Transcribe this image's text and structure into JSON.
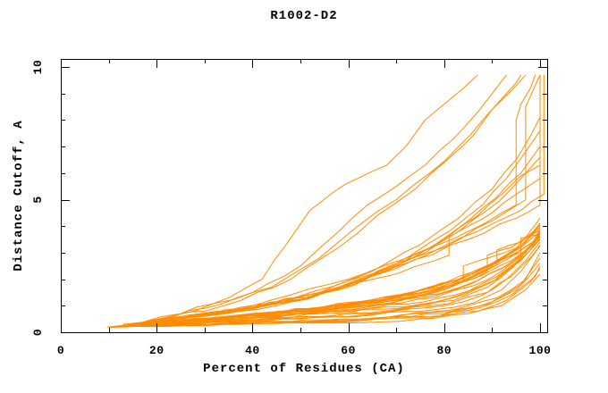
{
  "title": "R1002-D2",
  "chart_data": {
    "type": "line",
    "title": "R1002-D2",
    "xlabel": "Percent of Residues (CA)",
    "ylabel": "Distance Cutoff, A",
    "xlim": [
      0,
      101.5
    ],
    "ylim": [
      0,
      10.34
    ],
    "x_major_ticks": [
      0,
      20,
      40,
      60,
      80,
      100
    ],
    "x_minor_ticks": [
      10,
      30,
      50,
      70,
      90
    ],
    "y_major_ticks": [
      0,
      5,
      10
    ],
    "y_minor_ticks": [
      1,
      2,
      3,
      4,
      6,
      7,
      8,
      9
    ],
    "grid": false,
    "legend": "none",
    "line_color": "#ff8c00",
    "frame_color": "#000000",
    "curves": [
      [
        [
          9.7,
          0.2
        ],
        [
          20,
          0.3
        ],
        [
          35,
          0.4
        ],
        [
          50,
          0.5
        ],
        [
          65,
          0.65
        ],
        [
          78,
          0.85
        ],
        [
          86,
          1.1
        ],
        [
          92,
          1.6
        ],
        [
          96,
          2.3
        ],
        [
          99,
          3.0
        ],
        [
          100,
          3.3
        ]
      ],
      [
        [
          10.5,
          0.2
        ],
        [
          22,
          0.32
        ],
        [
          38,
          0.45
        ],
        [
          52,
          0.55
        ],
        [
          68,
          0.75
        ],
        [
          80,
          1.0
        ],
        [
          88,
          1.4
        ],
        [
          93,
          2.0
        ],
        [
          97,
          2.7
        ],
        [
          100,
          3.4
        ]
      ],
      [
        [
          11,
          0.22
        ],
        [
          25,
          0.35
        ],
        [
          42,
          0.5
        ],
        [
          58,
          0.65
        ],
        [
          72,
          0.9
        ],
        [
          82,
          1.2
        ],
        [
          89,
          1.7
        ],
        [
          94,
          2.4
        ],
        [
          98,
          3.1
        ],
        [
          100,
          3.5
        ]
      ],
      [
        [
          12,
          0.22
        ],
        [
          26,
          0.38
        ],
        [
          44,
          0.55
        ],
        [
          60,
          0.75
        ],
        [
          74,
          1.0
        ],
        [
          84,
          1.4
        ],
        [
          90,
          1.9
        ],
        [
          95,
          2.6
        ],
        [
          100,
          3.6
        ]
      ],
      [
        [
          12.5,
          0.25
        ],
        [
          28,
          0.4
        ],
        [
          46,
          0.6
        ],
        [
          62,
          0.85
        ],
        [
          76,
          1.15
        ],
        [
          85,
          1.55
        ],
        [
          91,
          2.1
        ],
        [
          96,
          2.8
        ],
        [
          100,
          3.7
        ]
      ],
      [
        [
          13,
          0.25
        ],
        [
          30,
          0.45
        ],
        [
          48,
          0.65
        ],
        [
          64,
          0.95
        ],
        [
          78,
          1.3
        ],
        [
          86,
          1.75
        ],
        [
          92,
          2.3
        ],
        [
          97,
          3.0
        ],
        [
          100,
          3.8
        ]
      ],
      [
        [
          14,
          0.25
        ],
        [
          32,
          0.5
        ],
        [
          50,
          0.7
        ],
        [
          66,
          1.05
        ],
        [
          79,
          1.45
        ],
        [
          87,
          1.95
        ],
        [
          93,
          2.5
        ],
        [
          98,
          3.2
        ],
        [
          100,
          3.9
        ]
      ],
      [
        [
          15,
          0.28
        ],
        [
          33,
          0.52
        ],
        [
          52,
          0.78
        ],
        [
          68,
          1.15
        ],
        [
          80,
          1.6
        ],
        [
          88,
          2.15
        ],
        [
          94,
          2.7
        ],
        [
          100,
          3.5
        ]
      ],
      [
        [
          15.5,
          0.28
        ],
        [
          34,
          0.55
        ],
        [
          54,
          0.85
        ],
        [
          70,
          1.3
        ],
        [
          82,
          1.8
        ],
        [
          89,
          2.4
        ],
        [
          95,
          3.0
        ],
        [
          100,
          3.6
        ]
      ],
      [
        [
          16,
          0.3
        ],
        [
          35,
          0.6
        ],
        [
          56,
          0.95
        ],
        [
          72,
          1.45
        ],
        [
          83,
          2.0
        ],
        [
          90,
          2.6
        ],
        [
          96,
          3.2
        ],
        [
          100,
          3.8
        ]
      ],
      [
        [
          10,
          0.2
        ],
        [
          24,
          0.33
        ],
        [
          40,
          0.47
        ],
        [
          56,
          0.6
        ],
        [
          70,
          0.82
        ],
        [
          81,
          1.08
        ],
        [
          89,
          1.5
        ],
        [
          94,
          2.1
        ],
        [
          98,
          2.8
        ],
        [
          100,
          3.25
        ]
      ],
      [
        [
          11.5,
          0.22
        ],
        [
          27,
          0.4
        ],
        [
          45,
          0.57
        ],
        [
          61,
          0.8
        ],
        [
          75,
          1.05
        ],
        [
          84,
          1.45
        ],
        [
          91,
          2.0
        ],
        [
          96,
          2.7
        ],
        [
          100,
          3.55
        ]
      ],
      [
        [
          13.5,
          0.26
        ],
        [
          31,
          0.48
        ],
        [
          49,
          0.68
        ],
        [
          65,
          1.0
        ],
        [
          78,
          1.38
        ],
        [
          86,
          1.85
        ],
        [
          92,
          2.4
        ],
        [
          97,
          3.1
        ],
        [
          100,
          3.65
        ]
      ],
      [
        [
          14.5,
          0.27
        ],
        [
          33,
          0.53
        ],
        [
          53,
          0.8
        ],
        [
          69,
          1.2
        ],
        [
          81,
          1.7
        ],
        [
          88,
          2.25
        ],
        [
          94,
          2.85
        ],
        [
          99,
          3.45
        ],
        [
          100,
          3.75
        ]
      ],
      [
        [
          16.5,
          0.3
        ],
        [
          36,
          0.62
        ],
        [
          57,
          1.0
        ],
        [
          73,
          1.5
        ],
        [
          84,
          2.05
        ],
        [
          91,
          2.65
        ],
        [
          96,
          3.25
        ],
        [
          100,
          3.95
        ]
      ],
      [
        [
          19,
          0.34
        ],
        [
          41,
          0.68
        ],
        [
          61,
          1.08
        ],
        [
          76,
          1.62
        ],
        [
          86,
          2.2
        ],
        [
          92,
          2.75
        ],
        [
          97,
          3.4
        ],
        [
          100,
          4.05
        ]
      ],
      [
        [
          10,
          0.18
        ],
        [
          30,
          0.25
        ],
        [
          55,
          0.35
        ],
        [
          75,
          0.5
        ],
        [
          85,
          0.7
        ],
        [
          92,
          1.0
        ],
        [
          97,
          1.6
        ],
        [
          100,
          2.2
        ]
      ],
      [
        [
          10.5,
          0.18
        ],
        [
          32,
          0.27
        ],
        [
          58,
          0.38
        ],
        [
          77,
          0.55
        ],
        [
          87,
          0.8
        ],
        [
          93,
          1.2
        ],
        [
          98,
          1.9
        ],
        [
          100,
          2.4
        ]
      ],
      [
        [
          11,
          0.2
        ],
        [
          34,
          0.3
        ],
        [
          60,
          0.42
        ],
        [
          79,
          0.62
        ],
        [
          88,
          0.95
        ],
        [
          94,
          1.4
        ],
        [
          99,
          2.1
        ],
        [
          100,
          2.5
        ]
      ],
      [
        [
          12,
          0.2
        ],
        [
          36,
          0.32
        ],
        [
          62,
          0.46
        ],
        [
          80,
          0.7
        ],
        [
          89,
          1.05
        ],
        [
          95,
          1.6
        ],
        [
          100,
          2.6
        ]
      ],
      [
        [
          13,
          0.22
        ],
        [
          38,
          0.35
        ],
        [
          64,
          0.5
        ],
        [
          81,
          0.78
        ],
        [
          90,
          1.15
        ],
        [
          96,
          1.8
        ],
        [
          100,
          2.8
        ]
      ],
      [
        [
          14,
          0.22
        ],
        [
          40,
          0.38
        ],
        [
          66,
          0.55
        ],
        [
          82,
          0.85
        ],
        [
          91,
          1.3
        ],
        [
          97,
          2.0
        ],
        [
          100,
          3.0
        ]
      ],
      [
        [
          16,
          0.3
        ],
        [
          36,
          0.55
        ],
        [
          58,
          0.9
        ],
        [
          74,
          1.35
        ],
        [
          84,
          1.9
        ],
        [
          89,
          2.3
        ],
        [
          89,
          2.9
        ],
        [
          94,
          3.2
        ],
        [
          100,
          3.85
        ]
      ],
      [
        [
          18,
          0.32
        ],
        [
          38,
          0.6
        ],
        [
          60,
          1.0
        ],
        [
          76,
          1.5
        ],
        [
          86,
          2.1
        ],
        [
          91,
          2.55
        ],
        [
          91,
          3.1
        ],
        [
          96,
          3.4
        ],
        [
          100,
          4.0
        ]
      ],
      [
        [
          20,
          0.35
        ],
        [
          42,
          0.65
        ],
        [
          62,
          1.05
        ],
        [
          78,
          1.6
        ],
        [
          84,
          1.95
        ],
        [
          84,
          2.5
        ],
        [
          90,
          2.85
        ],
        [
          96,
          3.25
        ],
        [
          100,
          4.1
        ]
      ],
      [
        [
          21,
          0.38
        ],
        [
          44,
          0.7
        ],
        [
          64,
          1.1
        ],
        [
          79,
          1.7
        ],
        [
          88,
          2.4
        ],
        [
          96,
          3.0
        ],
        [
          96,
          3.55
        ],
        [
          100,
          3.7
        ]
      ],
      [
        [
          22,
          0.4
        ],
        [
          46,
          0.78
        ],
        [
          66,
          1.2
        ],
        [
          80,
          1.85
        ],
        [
          89,
          2.5
        ],
        [
          95,
          3.15
        ],
        [
          100,
          4.3
        ]
      ],
      [
        [
          14,
          0.3
        ],
        [
          30,
          0.6
        ],
        [
          45,
          1.0
        ],
        [
          58,
          1.6
        ],
        [
          68,
          2.3
        ],
        [
          76,
          3.0
        ],
        [
          83,
          3.8
        ],
        [
          89,
          4.6
        ],
        [
          94,
          5.4
        ],
        [
          98,
          6.2
        ],
        [
          100,
          6.6
        ]
      ],
      [
        [
          16,
          0.32
        ],
        [
          33,
          0.7
        ],
        [
          48,
          1.15
        ],
        [
          60,
          1.8
        ],
        [
          70,
          2.5
        ],
        [
          78,
          3.3
        ],
        [
          85,
          4.2
        ],
        [
          91,
          5.1
        ],
        [
          96,
          6.0
        ],
        [
          100,
          7.0
        ]
      ],
      [
        [
          18,
          0.35
        ],
        [
          36,
          0.8
        ],
        [
          52,
          1.3
        ],
        [
          63,
          2.0
        ],
        [
          73,
          2.9
        ],
        [
          81,
          3.8
        ],
        [
          88,
          4.8
        ],
        [
          93,
          5.8
        ],
        [
          97,
          6.8
        ],
        [
          100,
          7.6
        ]
      ],
      [
        [
          19,
          0.38
        ],
        [
          38,
          0.9
        ],
        [
          54,
          1.5
        ],
        [
          65,
          2.3
        ],
        [
          75,
          3.3
        ],
        [
          83,
          4.3
        ],
        [
          90,
          5.4
        ],
        [
          95,
          6.5
        ],
        [
          98,
          7.4
        ],
        [
          100,
          8.1
        ]
      ],
      [
        [
          15,
          0.3
        ],
        [
          35,
          0.8
        ],
        [
          55,
          1.5
        ],
        [
          70,
          2.2
        ],
        [
          78,
          2.7
        ],
        [
          81,
          2.9
        ],
        [
          81,
          3.6
        ],
        [
          85,
          4.0
        ],
        [
          90,
          4.5
        ],
        [
          95,
          5.2
        ],
        [
          100,
          5.8
        ]
      ],
      [
        [
          17,
          0.33
        ],
        [
          40,
          0.95
        ],
        [
          58,
          1.7
        ],
        [
          71,
          2.6
        ],
        [
          80,
          3.5
        ],
        [
          87,
          4.4
        ],
        [
          92,
          5.2
        ],
        [
          96,
          5.9
        ],
        [
          100,
          6.3
        ]
      ],
      [
        [
          13,
          0.3
        ],
        [
          25,
          0.7
        ],
        [
          35,
          1.3
        ],
        [
          42,
          2.0
        ],
        [
          47,
          3.3
        ],
        [
          52,
          4.6
        ],
        [
          57,
          5.3
        ],
        [
          62,
          5.8
        ],
        [
          68,
          6.3
        ],
        [
          72,
          7.0
        ],
        [
          76,
          8.0
        ],
        [
          80,
          8.6
        ],
        [
          84,
          9.2
        ],
        [
          87,
          9.7
        ]
      ],
      [
        [
          15,
          0.3
        ],
        [
          28,
          0.8
        ],
        [
          40,
          1.5
        ],
        [
          50,
          2.5
        ],
        [
          58,
          3.8
        ],
        [
          64,
          4.8
        ],
        [
          70,
          5.5
        ],
        [
          76,
          6.3
        ],
        [
          82,
          7.3
        ],
        [
          87,
          8.3
        ],
        [
          90,
          9.0
        ],
        [
          93,
          9.7
        ]
      ],
      [
        [
          17,
          0.35
        ],
        [
          30,
          0.9
        ],
        [
          44,
          1.7
        ],
        [
          54,
          2.8
        ],
        [
          62,
          4.0
        ],
        [
          70,
          5.0
        ],
        [
          77,
          6.0
        ],
        [
          83,
          7.0
        ],
        [
          88,
          8.0
        ],
        [
          92,
          8.8
        ],
        [
          95,
          9.4
        ],
        [
          96,
          9.7
        ]
      ],
      [
        [
          18,
          0.4
        ],
        [
          34,
          1.0
        ],
        [
          48,
          2.0
        ],
        [
          58,
          3.2
        ],
        [
          66,
          4.4
        ],
        [
          74,
          5.4
        ],
        [
          80,
          6.4
        ],
        [
          86,
          7.4
        ],
        [
          90,
          8.4
        ],
        [
          94,
          9.1
        ],
        [
          97,
          9.7
        ]
      ],
      [
        [
          20,
          0.4
        ],
        [
          40,
          1.0
        ],
        [
          60,
          2.0
        ],
        [
          75,
          3.0
        ],
        [
          85,
          3.8
        ],
        [
          92,
          4.5
        ],
        [
          95,
          4.8
        ],
        [
          95,
          8.0
        ],
        [
          96,
          8.6
        ],
        [
          98,
          9.2
        ],
        [
          99,
          9.7
        ]
      ],
      [
        [
          22,
          0.45
        ],
        [
          45,
          1.1
        ],
        [
          65,
          2.2
        ],
        [
          80,
          3.2
        ],
        [
          90,
          4.2
        ],
        [
          97,
          5.0
        ],
        [
          97,
          8.5
        ],
        [
          99,
          9.3
        ],
        [
          100,
          9.7
        ]
      ],
      [
        [
          24,
          0.5
        ],
        [
          50,
          1.2
        ],
        [
          70,
          2.4
        ],
        [
          85,
          3.5
        ],
        [
          95,
          4.3
        ],
        [
          100,
          4.8
        ],
        [
          100,
          9.7
        ]
      ],
      [
        [
          25,
          0.5
        ],
        [
          52,
          1.3
        ],
        [
          72,
          2.6
        ],
        [
          87,
          3.8
        ],
        [
          96,
          4.6
        ],
        [
          100.8,
          5.2
        ],
        [
          100.8,
          9.7
        ]
      ]
    ]
  }
}
